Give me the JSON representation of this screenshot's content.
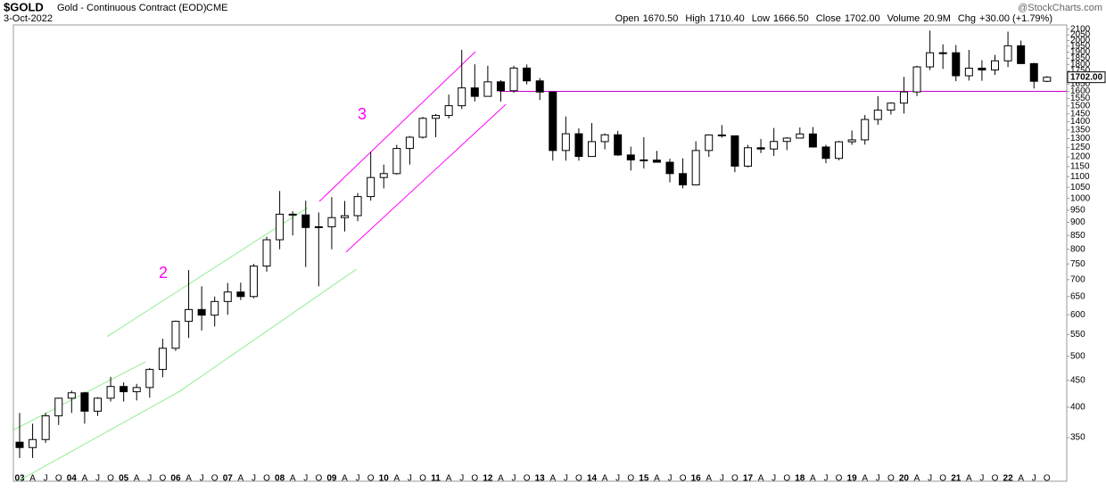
{
  "chart_data": {
    "type": "candlestick",
    "symbol": "$GOLD",
    "name": "Gold - Continuous Contract (EOD)",
    "exchange": "CME",
    "date": "3-Oct-2022",
    "credit": "@StockCharts.com",
    "quote": [
      {
        "label": "Open",
        "value": "1670.50"
      },
      {
        "label": "High",
        "value": "1710.40"
      },
      {
        "label": "Low",
        "value": "1666.50"
      },
      {
        "label": "Close",
        "value": "1702.00"
      },
      {
        "label": "Volume",
        "value": "20.9M"
      },
      {
        "label": "Chg",
        "value": "+30.00 (+1.79%)"
      }
    ],
    "log_scale": true,
    "ylim": [
      289,
      2141
    ],
    "yticks": [
      350,
      400,
      450,
      500,
      550,
      600,
      650,
      700,
      750,
      800,
      850,
      900,
      950,
      1000,
      1050,
      1100,
      1150,
      1200,
      1250,
      1300,
      1350,
      1400,
      1450,
      1500,
      1550,
      1600,
      1650,
      1700,
      1750,
      1800,
      1850,
      1900,
      1950,
      2000,
      2050,
      2100
    ],
    "categories": [
      "03",
      "A",
      "J",
      "O",
      "04",
      "A",
      "J",
      "O",
      "05",
      "A",
      "J",
      "O",
      "06",
      "A",
      "J",
      "O",
      "07",
      "A",
      "J",
      "O",
      "08",
      "A",
      "J",
      "O",
      "09",
      "A",
      "J",
      "O",
      "10",
      "A",
      "J",
      "O",
      "11",
      "A",
      "J",
      "O",
      "12",
      "A",
      "J",
      "O",
      "13",
      "A",
      "J",
      "O",
      "14",
      "A",
      "J",
      "O",
      "15",
      "A",
      "J",
      "O",
      "16",
      "A",
      "J",
      "O",
      "17",
      "A",
      "J",
      "O",
      "18",
      "A",
      "J",
      "O",
      "19",
      "A",
      "J",
      "O",
      "20",
      "A",
      "J",
      "O",
      "21",
      "A",
      "J",
      "O",
      "22",
      "A",
      "J",
      "O"
    ],
    "open": [
      343,
      335,
      347,
      385,
      416,
      426,
      393,
      416,
      438,
      428,
      436,
      472,
      518,
      583,
      614,
      599,
      636,
      663,
      650,
      743,
      834,
      933,
      930,
      880,
      883,
      919,
      927,
      1008,
      1096,
      1115,
      1245,
      1308,
      1421,
      1439,
      1502,
      1624,
      1565,
      1668,
      1604,
      1772,
      1675,
      1595,
      1234,
      1328,
      1202,
      1283,
      1322,
      1210,
      1184,
      1183,
      1172,
      1115,
      1061,
      1234,
      1321,
      1316,
      1152,
      1249,
      1242,
      1284,
      1303,
      1327,
      1253,
      1192,
      1282,
      1293,
      1414,
      1473,
      1519,
      1596,
      1781,
      1895,
      1895,
      1713,
      1771,
      1757,
      1829,
      1954,
      1807,
      1672
    ],
    "high": [
      390,
      372,
      390,
      417,
      430,
      428,
      418,
      457,
      446,
      443,
      475,
      540,
      585,
      730,
      680,
      650,
      690,
      691,
      750,
      845,
      1033,
      945,
      990,
      940,
      1006,
      989,
      1024,
      1227,
      1160,
      1265,
      1315,
      1430,
      1448,
      1577,
      1920,
      1802,
      1790,
      1680,
      1790,
      1800,
      1696,
      1600,
      1433,
      1360,
      1392,
      1330,
      1345,
      1255,
      1308,
      1232,
      1190,
      1192,
      1285,
      1325,
      1380,
      1310,
      1265,
      1298,
      1362,
      1308,
      1365,
      1368,
      1265,
      1287,
      1347,
      1442,
      1566,
      1525,
      1704,
      1790,
      2089,
      1966,
      1960,
      1919,
      1834,
      1877,
      2079,
      1999,
      1813,
      1710
    ],
    "low": [
      320,
      320,
      342,
      370,
      390,
      372,
      385,
      410,
      410,
      412,
      417,
      456,
      512,
      542,
      560,
      570,
      600,
      640,
      645,
      725,
      800,
      850,
      740,
      680,
      800,
      865,
      905,
      990,
      1045,
      1110,
      1160,
      1300,
      1308,
      1420,
      1480,
      1530,
      1565,
      1530,
      1590,
      1650,
      1540,
      1180,
      1180,
      1180,
      1200,
      1240,
      1205,
      1130,
      1140,
      1170,
      1073,
      1045,
      1060,
      1200,
      1305,
      1122,
      1146,
      1220,
      1205,
      1236,
      1300,
      1250,
      1167,
      1182,
      1265,
      1266,
      1381,
      1445,
      1451,
      1567,
      1757,
      1765,
      1673,
      1677,
      1676,
      1720,
      1780,
      1807,
      1620,
      1666
    ],
    "close": [
      335,
      347,
      385,
      416,
      426,
      393,
      416,
      438,
      428,
      436,
      472,
      518,
      583,
      614,
      599,
      636,
      663,
      650,
      743,
      834,
      933,
      930,
      880,
      883,
      919,
      927,
      1008,
      1096,
      1115,
      1245,
      1308,
      1421,
      1439,
      1502,
      1624,
      1565,
      1668,
      1604,
      1772,
      1675,
      1595,
      1234,
      1328,
      1202,
      1283,
      1322,
      1210,
      1184,
      1183,
      1172,
      1115,
      1061,
      1234,
      1321,
      1316,
      1152,
      1249,
      1242,
      1284,
      1303,
      1327,
      1253,
      1192,
      1282,
      1293,
      1414,
      1473,
      1519,
      1596,
      1781,
      1895,
      1895,
      1713,
      1771,
      1757,
      1829,
      1954,
      1807,
      1672,
      1702
    ],
    "lines": [
      {
        "color": "#90ee90",
        "points": [
          [
            -1.5,
            351
          ],
          [
            9.67,
            488
          ]
        ]
      },
      {
        "color": "#90ee90",
        "points": [
          [
            -0.14,
            289
          ],
          [
            12.55,
            432
          ]
        ]
      },
      {
        "color": "#90ee90",
        "points": [
          [
            6.72,
            545
          ],
          [
            22.15,
            960
          ]
        ]
      },
      {
        "color": "#90ee90",
        "points": [
          [
            12.2,
            427
          ],
          [
            25.9,
            733
          ]
        ]
      },
      {
        "color": "#ff00ff",
        "points": [
          [
            23.05,
            987
          ],
          [
            35.05,
            1904
          ]
        ]
      },
      {
        "color": "#ff00ff",
        "points": [
          [
            25.1,
            790
          ],
          [
            37.4,
            1512
          ]
        ]
      },
      {
        "color": "#cc00cc",
        "points": [
          [
            36.9,
            1600
          ],
          [
            81.5,
            1600
          ]
        ]
      }
    ],
    "annotations": [
      {
        "text": "2",
        "color": "#ff00ff"
      },
      {
        "text": "3",
        "color": "#ff00ff"
      }
    ]
  }
}
